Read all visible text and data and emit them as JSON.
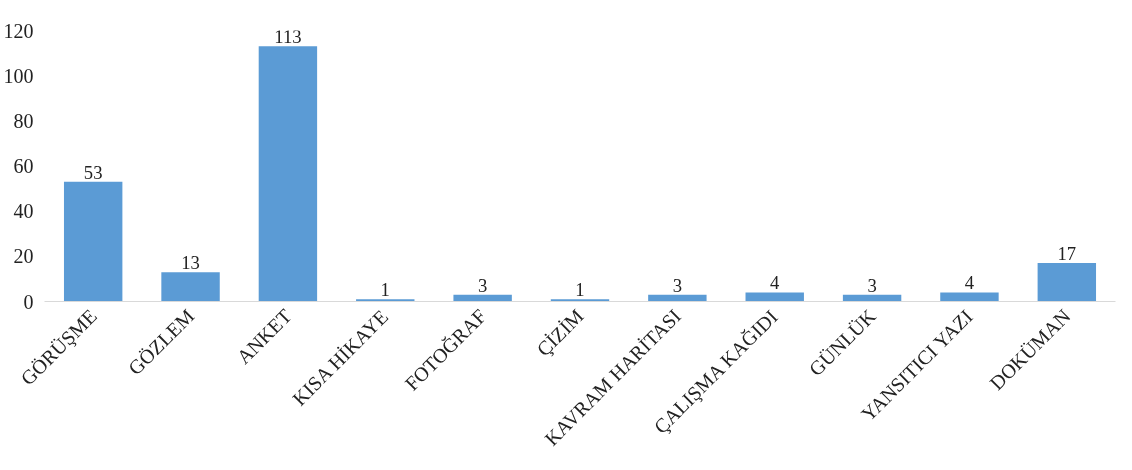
{
  "chart_data": {
    "type": "bar",
    "categories": [
      "GÖRÜŞME",
      "GÖZLEM",
      "ANKET",
      "KISA HİKAYE",
      "FOTOĞRAF",
      "ÇİZİM",
      "KAVRAM HARİTASI",
      "ÇALIŞMA KAĞIDI",
      "GÜNLÜK",
      "YANSITICI YAZI",
      "DOKÜMAN"
    ],
    "values": [
      53,
      13,
      113,
      1,
      3,
      1,
      3,
      4,
      3,
      4,
      17
    ],
    "color": "#5b9bd5",
    "ylim": [
      0,
      120
    ],
    "yticks": [
      0,
      20,
      40,
      60,
      80,
      100,
      120
    ],
    "grid": false,
    "data_labels": true
  }
}
